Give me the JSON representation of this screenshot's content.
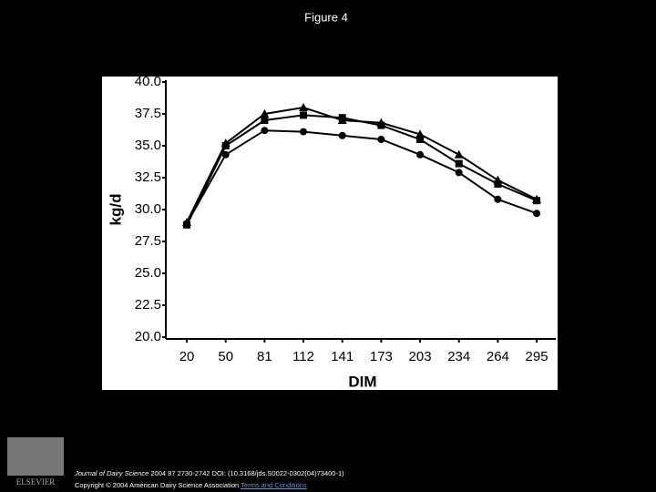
{
  "slide_title": "Figure 4",
  "chart_data": {
    "type": "line",
    "y_label": "kg/d",
    "x_label": "DIM",
    "categories": [
      "20",
      "50",
      "81",
      "112",
      "141",
      "173",
      "203",
      "234",
      "264",
      "295"
    ],
    "series": [
      {
        "color": "#000000",
        "marker": "circle",
        "values": [
          28.9,
          34.3,
          36.2,
          36.1,
          35.8,
          35.5,
          34.3,
          32.9,
          30.8,
          29.7
        ]
      },
      {
        "color": "#000000",
        "marker": "square",
        "values": [
          28.8,
          35.0,
          37.0,
          37.4,
          37.2,
          36.6,
          35.5,
          33.6,
          32.0,
          30.7
        ]
      },
      {
        "color": "#000000",
        "marker": "triangle",
        "values": [
          29.0,
          35.2,
          37.5,
          38.0,
          37.0,
          36.8,
          35.9,
          34.3,
          32.3,
          30.8
        ]
      }
    ],
    "ylim": [
      20,
      40
    ],
    "yticks": [
      {
        "value": 20,
        "label": "20.0"
      },
      22.5,
      {
        "value": 25,
        "label": "25.0"
      },
      27.5,
      {
        "value": 30,
        "label": "30.0"
      },
      32.5,
      {
        "value": 35,
        "label": "35.0"
      },
      37.5,
      {
        "value": 40,
        "label": "40.0"
      }
    ],
    "grid": false
  },
  "footer": {
    "publisher": "ELSEVIER",
    "journal": "Journal of Dairy Science",
    "citation": "2004 87 2730-2742 DOI: (10.3168/jds.S0022-0302(04)73400-1)",
    "copyright": "Copyright © 2004 American Dairy Science Association",
    "link": "Terms and Conditions"
  }
}
